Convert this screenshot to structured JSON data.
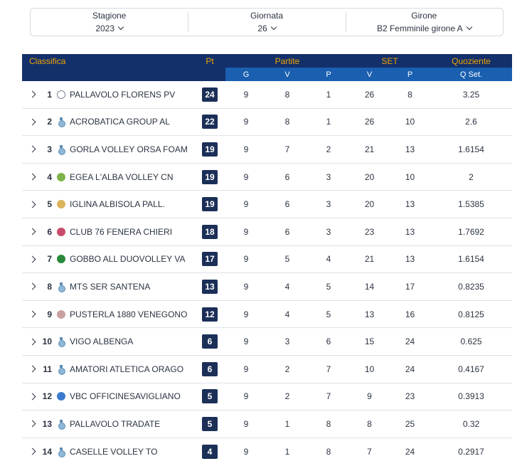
{
  "filters": {
    "season": {
      "label": "Stagione",
      "value": "2023"
    },
    "round": {
      "label": "Giornata",
      "value": "26"
    },
    "group": {
      "label": "Girone",
      "value": "B2 Femminile girone A"
    }
  },
  "table": {
    "headers": {
      "classifica": "Classifica",
      "pt": "Pt",
      "partite": "Partite",
      "set": "SET",
      "quoziente": "Quoziente",
      "g": "G",
      "v": "V",
      "p": "P",
      "set_v": "V",
      "set_p": "P",
      "q_set": "Q Set."
    },
    "rows": [
      {
        "rank": "1",
        "team": "PALLAVOLO FLORENS PV",
        "pt": "24",
        "g": "9",
        "v": "8",
        "p": "1",
        "sv": "26",
        "sp": "8",
        "q": "3.25",
        "logo": "volleyball-icon"
      },
      {
        "rank": "2",
        "team": "ACROBATICA GROUP AL",
        "pt": "22",
        "g": "9",
        "v": "8",
        "p": "1",
        "sv": "26",
        "sp": "10",
        "q": "2.6",
        "logo": "medal-icon"
      },
      {
        "rank": "3",
        "team": "GORLA VOLLEY ORSA FOAM",
        "pt": "19",
        "g": "9",
        "v": "7",
        "p": "2",
        "sv": "21",
        "sp": "13",
        "q": "1.6154",
        "logo": "medal-icon"
      },
      {
        "rank": "4",
        "team": "EGEA L'ALBA VOLLEY CN",
        "pt": "19",
        "g": "9",
        "v": "6",
        "p": "3",
        "sv": "20",
        "sp": "10",
        "q": "2",
        "logo": "team-logo-icon"
      },
      {
        "rank": "5",
        "team": "IGLINA ALBISOLA PALL.",
        "pt": "19",
        "g": "9",
        "v": "6",
        "p": "3",
        "sv": "20",
        "sp": "13",
        "q": "1.5385",
        "logo": "team-logo-icon"
      },
      {
        "rank": "6",
        "team": "CLUB 76 FENERA CHIERI",
        "pt": "18",
        "g": "9",
        "v": "6",
        "p": "3",
        "sv": "23",
        "sp": "13",
        "q": "1.7692",
        "logo": "team-logo-icon"
      },
      {
        "rank": "7",
        "team": "GOBBO ALL DUOVOLLEY VA",
        "pt": "17",
        "g": "9",
        "v": "5",
        "p": "4",
        "sv": "21",
        "sp": "13",
        "q": "1.6154",
        "logo": "team-logo-icon"
      },
      {
        "rank": "8",
        "team": "MTS SER SANTENA",
        "pt": "13",
        "g": "9",
        "v": "4",
        "p": "5",
        "sv": "14",
        "sp": "17",
        "q": "0.8235",
        "logo": "medal-icon"
      },
      {
        "rank": "9",
        "team": "PUSTERLA 1880 VENEGONO",
        "pt": "12",
        "g": "9",
        "v": "4",
        "p": "5",
        "sv": "13",
        "sp": "16",
        "q": "0.8125",
        "logo": "team-logo-icon"
      },
      {
        "rank": "10",
        "team": "VIGO ALBENGA",
        "pt": "6",
        "g": "9",
        "v": "3",
        "p": "6",
        "sv": "15",
        "sp": "24",
        "q": "0.625",
        "logo": "medal-icon"
      },
      {
        "rank": "11",
        "team": "AMATORI ATLETICA ORAGO",
        "pt": "6",
        "g": "9",
        "v": "2",
        "p": "7",
        "sv": "10",
        "sp": "24",
        "q": "0.4167",
        "logo": "medal-icon"
      },
      {
        "rank": "12",
        "team": "VBC OFFICINESAVIGLIANO",
        "pt": "5",
        "g": "9",
        "v": "2",
        "p": "7",
        "sv": "9",
        "sp": "23",
        "q": "0.3913",
        "logo": "team-logo-icon"
      },
      {
        "rank": "13",
        "team": "PALLAVOLO TRADATE",
        "pt": "5",
        "g": "9",
        "v": "1",
        "p": "8",
        "sv": "8",
        "sp": "25",
        "q": "0.32",
        "logo": "medal-icon"
      },
      {
        "rank": "14",
        "team": "CASELLE VOLLEY TO",
        "pt": "4",
        "g": "9",
        "v": "1",
        "p": "8",
        "sv": "7",
        "sp": "24",
        "q": "0.2917",
        "logo": "medal-icon"
      }
    ]
  },
  "colors": {
    "header_dark": "#13306b",
    "header_blue": "#1a5fb0",
    "accent_gold": "#f0a500",
    "pts_badge": "#1b2f57"
  }
}
